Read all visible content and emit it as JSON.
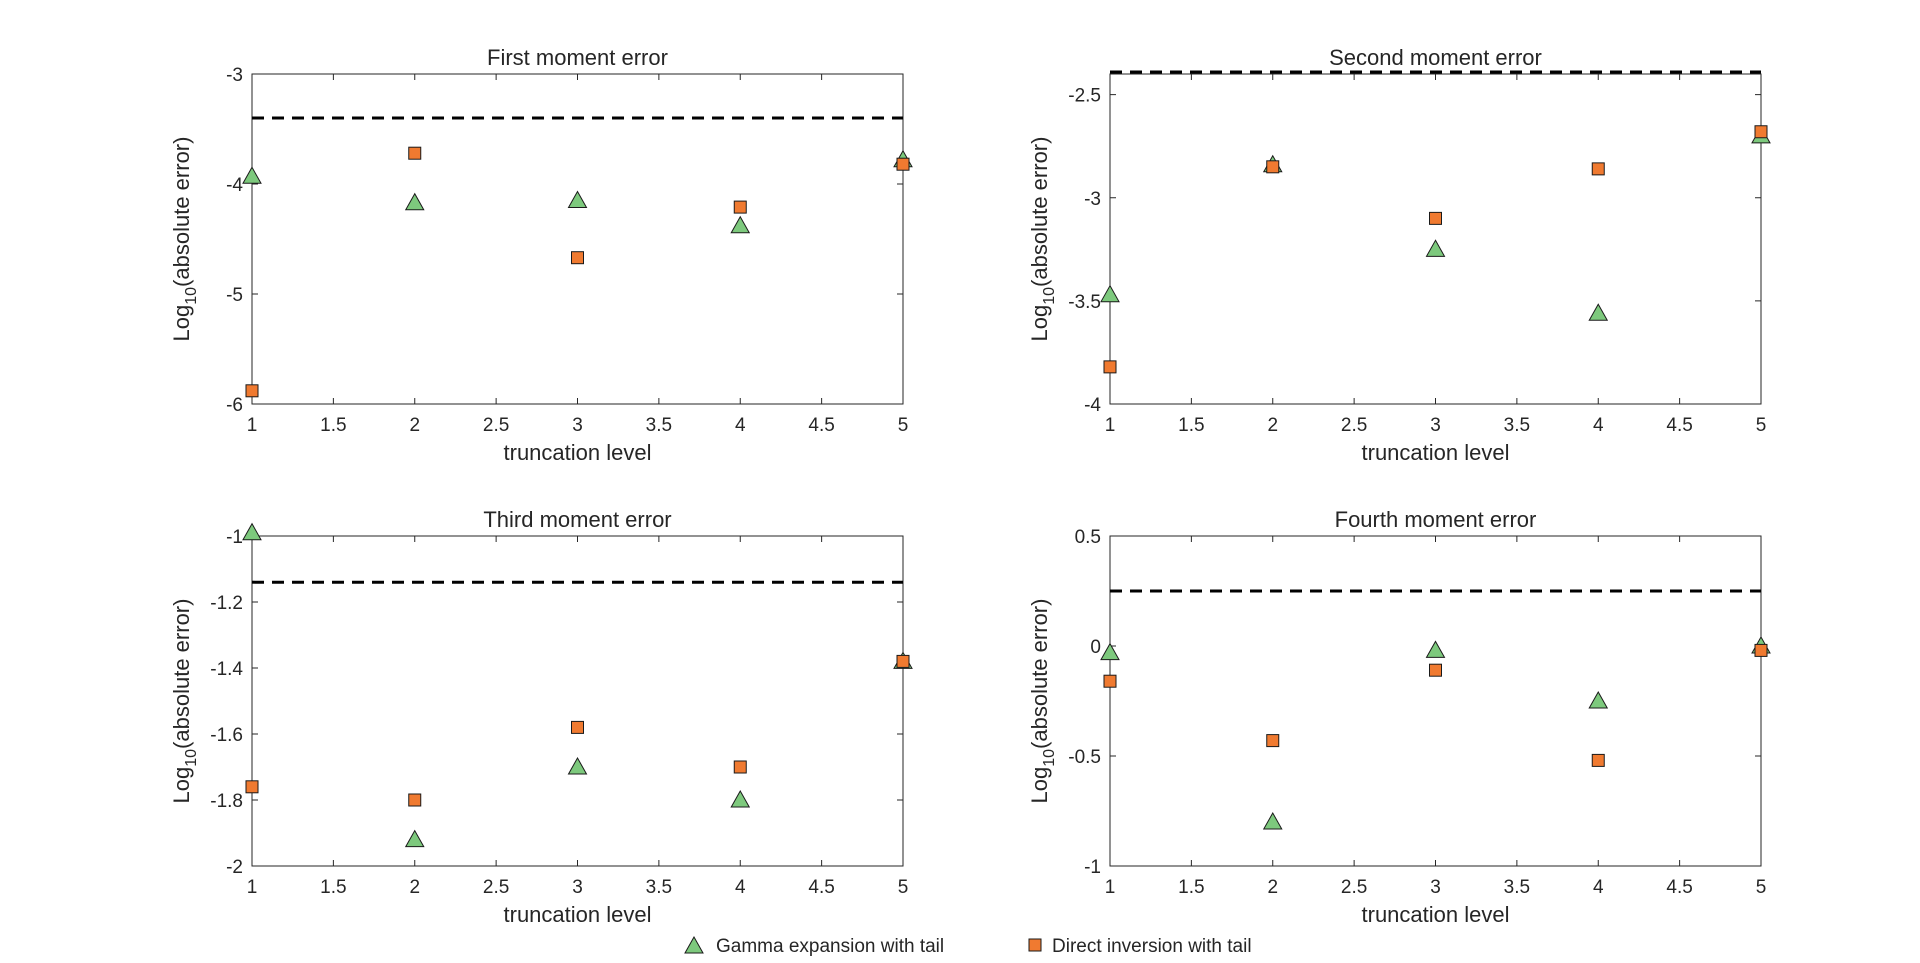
{
  "chart_data": [
    {
      "type": "scatter",
      "title": "First moment error",
      "xlabel": "truncation level",
      "ylabel": {
        "base": "Log",
        "sub": "10",
        "rest": "(absolute error)"
      },
      "xlim": [
        1,
        5
      ],
      "ylim": [
        -6,
        -3
      ],
      "xticks": [
        "1",
        "1.5",
        "2",
        "2.5",
        "3",
        "3.5",
        "4",
        "4.5",
        "5"
      ],
      "yticks": [
        "-6",
        "-5",
        "-4",
        "-3"
      ],
      "reference_line": -3.4,
      "series": [
        {
          "name": "Gamma expansion with tail",
          "x": [
            1,
            2,
            3,
            4,
            5
          ],
          "y": [
            -3.93,
            -4.17,
            -4.15,
            -4.38,
            -3.78
          ]
        },
        {
          "name": "Direct inversion with tail",
          "x": [
            1,
            2,
            3,
            4,
            5
          ],
          "y": [
            -5.88,
            -3.72,
            -4.67,
            -4.21,
            -3.82
          ]
        }
      ]
    },
    {
      "type": "scatter",
      "title": "Second moment error",
      "xlabel": "truncation level",
      "ylabel": {
        "base": "Log",
        "sub": "10",
        "rest": "(absolute error)"
      },
      "xlim": [
        1,
        5
      ],
      "ylim": [
        -4,
        -2.4
      ],
      "xticks": [
        "1",
        "1.5",
        "2",
        "2.5",
        "3",
        "3.5",
        "4",
        "4.5",
        "5"
      ],
      "yticks": [
        "-4",
        "-3.5",
        "-3",
        "-2.5"
      ],
      "reference_line": -2.39,
      "series": [
        {
          "name": "Gamma expansion with tail",
          "x": [
            1,
            2,
            3,
            4,
            5
          ],
          "y": [
            -3.47,
            -2.84,
            -3.25,
            -3.56,
            -2.7
          ]
        },
        {
          "name": "Direct inversion with tail",
          "x": [
            1,
            2,
            3,
            4,
            5
          ],
          "y": [
            -3.82,
            -2.85,
            -3.1,
            -2.86,
            -2.68
          ]
        }
      ]
    },
    {
      "type": "scatter",
      "title": "Third moment error",
      "xlabel": "truncation level",
      "ylabel": {
        "base": "Log",
        "sub": "10",
        "rest": "(absolute error)"
      },
      "xlim": [
        1,
        5
      ],
      "ylim": [
        -2,
        -1
      ],
      "xticks": [
        "1",
        "1.5",
        "2",
        "2.5",
        "3",
        "3.5",
        "4",
        "4.5",
        "5"
      ],
      "yticks": [
        "-2",
        "-1.8",
        "-1.6",
        "-1.4",
        "-1.2",
        "-1"
      ],
      "reference_line": -1.14,
      "series": [
        {
          "name": "Gamma expansion with tail",
          "x": [
            1,
            2,
            3,
            4,
            5
          ],
          "y": [
            -0.99,
            -1.92,
            -1.7,
            -1.8,
            -1.38
          ]
        },
        {
          "name": "Direct inversion with tail",
          "x": [
            1,
            2,
            3,
            4,
            5
          ],
          "y": [
            -1.76,
            -1.8,
            -1.58,
            -1.7,
            -1.38
          ]
        }
      ]
    },
    {
      "type": "scatter",
      "title": "Fourth moment error",
      "xlabel": "truncation level",
      "ylabel": {
        "base": "Log",
        "sub": "10",
        "rest": "(absolute error)"
      },
      "xlim": [
        1,
        5
      ],
      "ylim": [
        -1,
        0.5
      ],
      "xticks": [
        "1",
        "1.5",
        "2",
        "2.5",
        "3",
        "3.5",
        "4",
        "4.5",
        "5"
      ],
      "yticks": [
        "-1",
        "-0.5",
        "0",
        "0.5"
      ],
      "reference_line": 0.25,
      "series": [
        {
          "name": "Gamma expansion with tail",
          "x": [
            1,
            2,
            3,
            4,
            5
          ],
          "y": [
            -0.03,
            -0.8,
            -0.02,
            -0.25,
            0.0
          ]
        },
        {
          "name": "Direct inversion with tail",
          "x": [
            1,
            2,
            3,
            4,
            5
          ],
          "y": [
            -0.16,
            -0.43,
            -0.11,
            -0.52,
            -0.02
          ]
        }
      ]
    }
  ],
  "legend": {
    "position": "bottom-center",
    "entries": [
      {
        "label": "Gamma expansion with tail",
        "marker": "triangle-icon",
        "color": "#7dc97d"
      },
      {
        "label": "Direct inversion with tail",
        "marker": "square-icon",
        "color": "#f07a30"
      }
    ]
  },
  "colors": {
    "gamma_fill": "#7dc97d",
    "direct_fill": "#f07a30",
    "marker_edge": "#1a1a1a",
    "reference_line": "#000000",
    "axes": "#262626"
  }
}
